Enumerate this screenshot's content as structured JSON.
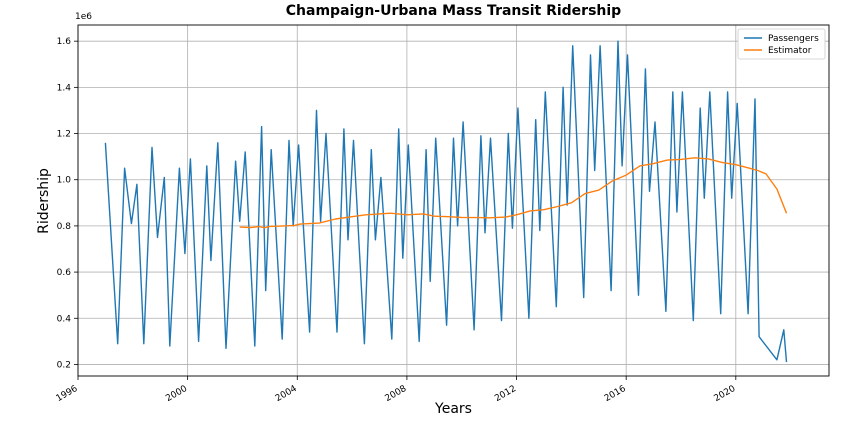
{
  "chart_data": {
    "type": "line",
    "title": "Champaign-Urbana Mass Transit Ridership",
    "xlabel": "Years",
    "ylabel": "Ridership",
    "y_offset_label": "1e6",
    "xlim": [
      1996.0,
      2023.4
    ],
    "ylim": [
      0.15,
      1.67
    ],
    "x_ticks": [
      1996,
      2000,
      2004,
      2008,
      2012,
      2016,
      2020
    ],
    "y_ticks": [
      0.2,
      0.4,
      0.6,
      0.8,
      1.0,
      1.2,
      1.4,
      1.6
    ],
    "grid": true,
    "legend_position": "top-right",
    "series": [
      {
        "name": "Passengers",
        "color": "#1f77b4",
        "x": [
          1997.0,
          1997.45,
          1997.7,
          1997.95,
          1998.15,
          1998.4,
          1998.7,
          1998.9,
          1999.15,
          1999.35,
          1999.7,
          1999.9,
          2000.1,
          2000.4,
          2000.7,
          2000.85,
          2001.1,
          2001.4,
          2001.75,
          2001.9,
          2002.1,
          2002.45,
          2002.7,
          2002.85,
          2003.05,
          2003.45,
          2003.7,
          2003.85,
          2004.05,
          2004.45,
          2004.7,
          2004.85,
          2005.05,
          2005.45,
          2005.7,
          2005.85,
          2006.05,
          2006.45,
          2006.7,
          2006.85,
          2007.05,
          2007.45,
          2007.7,
          2007.85,
          2008.05,
          2008.45,
          2008.7,
          2008.85,
          2009.05,
          2009.45,
          2009.7,
          2009.85,
          2010.05,
          2010.45,
          2010.7,
          2010.85,
          2011.05,
          2011.45,
          2011.7,
          2011.85,
          2012.05,
          2012.45,
          2012.7,
          2012.85,
          2013.05,
          2013.45,
          2013.7,
          2013.85,
          2014.05,
          2014.45,
          2014.7,
          2014.85,
          2015.05,
          2015.45,
          2015.7,
          2015.85,
          2016.05,
          2016.45,
          2016.7,
          2016.85,
          2017.05,
          2017.45,
          2017.7,
          2017.85,
          2018.05,
          2018.45,
          2018.7,
          2018.85,
          2019.05,
          2019.45,
          2019.7,
          2019.85,
          2020.05,
          2020.45,
          2020.7,
          2020.85,
          2021.5,
          2021.75,
          2021.85
        ],
        "y": [
          1.16,
          0.29,
          1.05,
          0.81,
          0.98,
          0.29,
          1.14,
          0.75,
          1.01,
          0.28,
          1.05,
          0.68,
          1.09,
          0.3,
          1.06,
          0.65,
          1.16,
          0.27,
          1.08,
          0.82,
          1.12,
          0.28,
          1.23,
          0.52,
          1.13,
          0.31,
          1.17,
          0.8,
          1.15,
          0.34,
          1.3,
          0.82,
          1.2,
          0.34,
          1.22,
          0.74,
          1.17,
          0.29,
          1.13,
          0.74,
          1.01,
          0.31,
          1.22,
          0.66,
          1.15,
          0.3,
          1.13,
          0.56,
          1.18,
          0.37,
          1.18,
          0.8,
          1.25,
          0.35,
          1.19,
          0.77,
          1.18,
          0.39,
          1.2,
          0.79,
          1.31,
          0.4,
          1.26,
          0.78,
          1.38,
          0.45,
          1.4,
          0.89,
          1.58,
          0.49,
          1.54,
          1.04,
          1.58,
          0.52,
          1.6,
          1.06,
          1.54,
          0.5,
          1.48,
          0.95,
          1.25,
          0.43,
          1.38,
          0.86,
          1.38,
          0.39,
          1.31,
          0.92,
          1.38,
          0.42,
          1.38,
          0.92,
          1.33,
          0.42,
          1.35,
          0.32,
          0.22,
          0.35,
          0.21
        ]
      },
      {
        "name": "Estimator",
        "color": "#ff7f0e",
        "x": [
          2001.9,
          2002.3,
          2002.6,
          2002.8,
          2003.0,
          2003.5,
          2003.9,
          2004.1,
          2004.8,
          2005.4,
          2005.9,
          2006.5,
          2007.0,
          2007.4,
          2008.0,
          2008.6,
          2009.0,
          2009.5,
          2010.0,
          2010.6,
          2011.0,
          2011.6,
          2012.0,
          2012.5,
          2013.0,
          2013.5,
          2014.0,
          2014.5,
          2015.0,
          2015.5,
          2016.0,
          2016.5,
          2017.0,
          2017.5,
          2018.0,
          2018.5,
          2019.0,
          2019.5,
          2020.0,
          2020.5,
          2020.8,
          2021.1,
          2021.5,
          2021.85
        ],
        "y": [
          0.795,
          0.793,
          0.797,
          0.792,
          0.798,
          0.8,
          0.802,
          0.808,
          0.812,
          0.83,
          0.838,
          0.848,
          0.852,
          0.855,
          0.848,
          0.852,
          0.842,
          0.84,
          0.837,
          0.836,
          0.835,
          0.838,
          0.848,
          0.865,
          0.87,
          0.884,
          0.9,
          0.94,
          0.955,
          0.995,
          1.02,
          1.06,
          1.07,
          1.085,
          1.088,
          1.095,
          1.09,
          1.075,
          1.065,
          1.05,
          1.04,
          1.025,
          0.96,
          0.855
        ]
      }
    ]
  }
}
